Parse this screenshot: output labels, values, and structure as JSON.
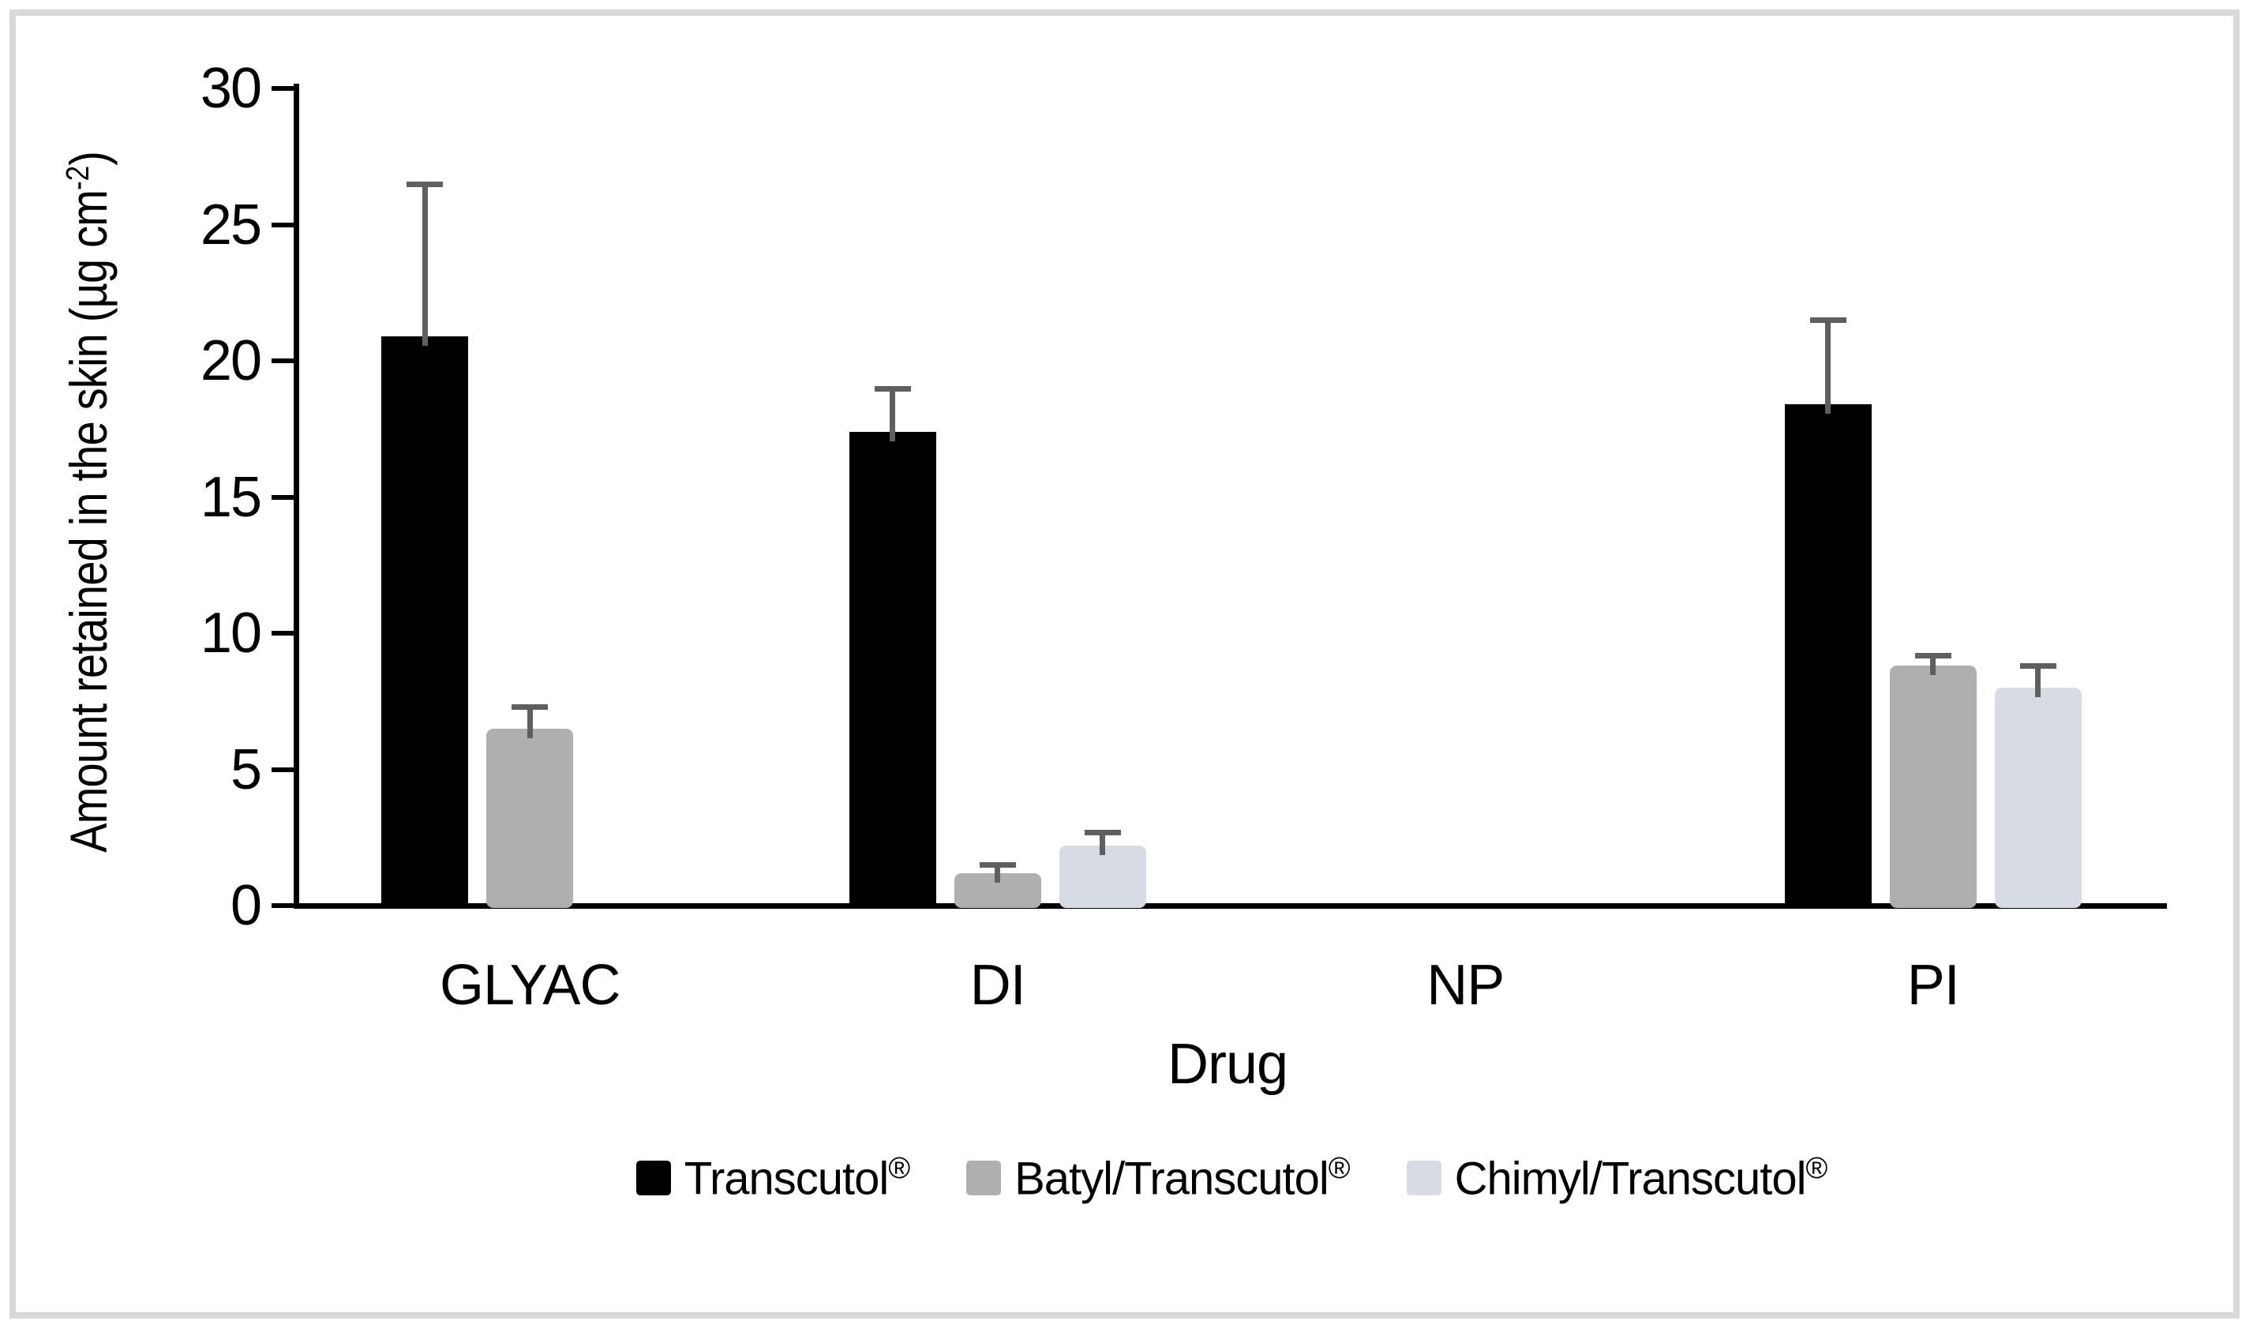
{
  "figure": {
    "border_color": "#d9d9d9",
    "background": "#ffffff"
  },
  "chart_data": {
    "type": "bar",
    "title": "",
    "categories": [
      "GLYAC",
      "DI",
      "NP",
      "PI"
    ],
    "series": [
      {
        "name": "Transcutol®",
        "color": "#000000",
        "values": [
          20.9,
          17.4,
          0,
          18.4
        ],
        "errors_plus": [
          5.6,
          1.6,
          0,
          3.1
        ]
      },
      {
        "name": "Batyl/Transcutol®",
        "color": "#b1aeae",
        "values": [
          6.5,
          1.2,
          0,
          8.8
        ],
        "errors_plus": [
          0.8,
          0.3,
          0,
          0.4
        ]
      },
      {
        "name": "Chimyl/Transcutol®",
        "color": "#d6dbe4",
        "values": [
          0,
          2.2,
          0,
          8.0
        ],
        "errors_plus": [
          0,
          0.5,
          0,
          0.8
        ]
      }
    ],
    "xlabel": "Drug",
    "ylabel": {
      "text": "Amount retained in the skin (µg cm",
      "sup": "-2",
      "suffix": ")"
    },
    "ylim": [
      0,
      30
    ],
    "yticks": [
      0,
      5,
      10,
      15,
      20,
      25,
      30
    ],
    "error_bar_color": "#5f5f5f",
    "axis_color": "#000000",
    "grid": false,
    "legend_position": "bottom"
  }
}
